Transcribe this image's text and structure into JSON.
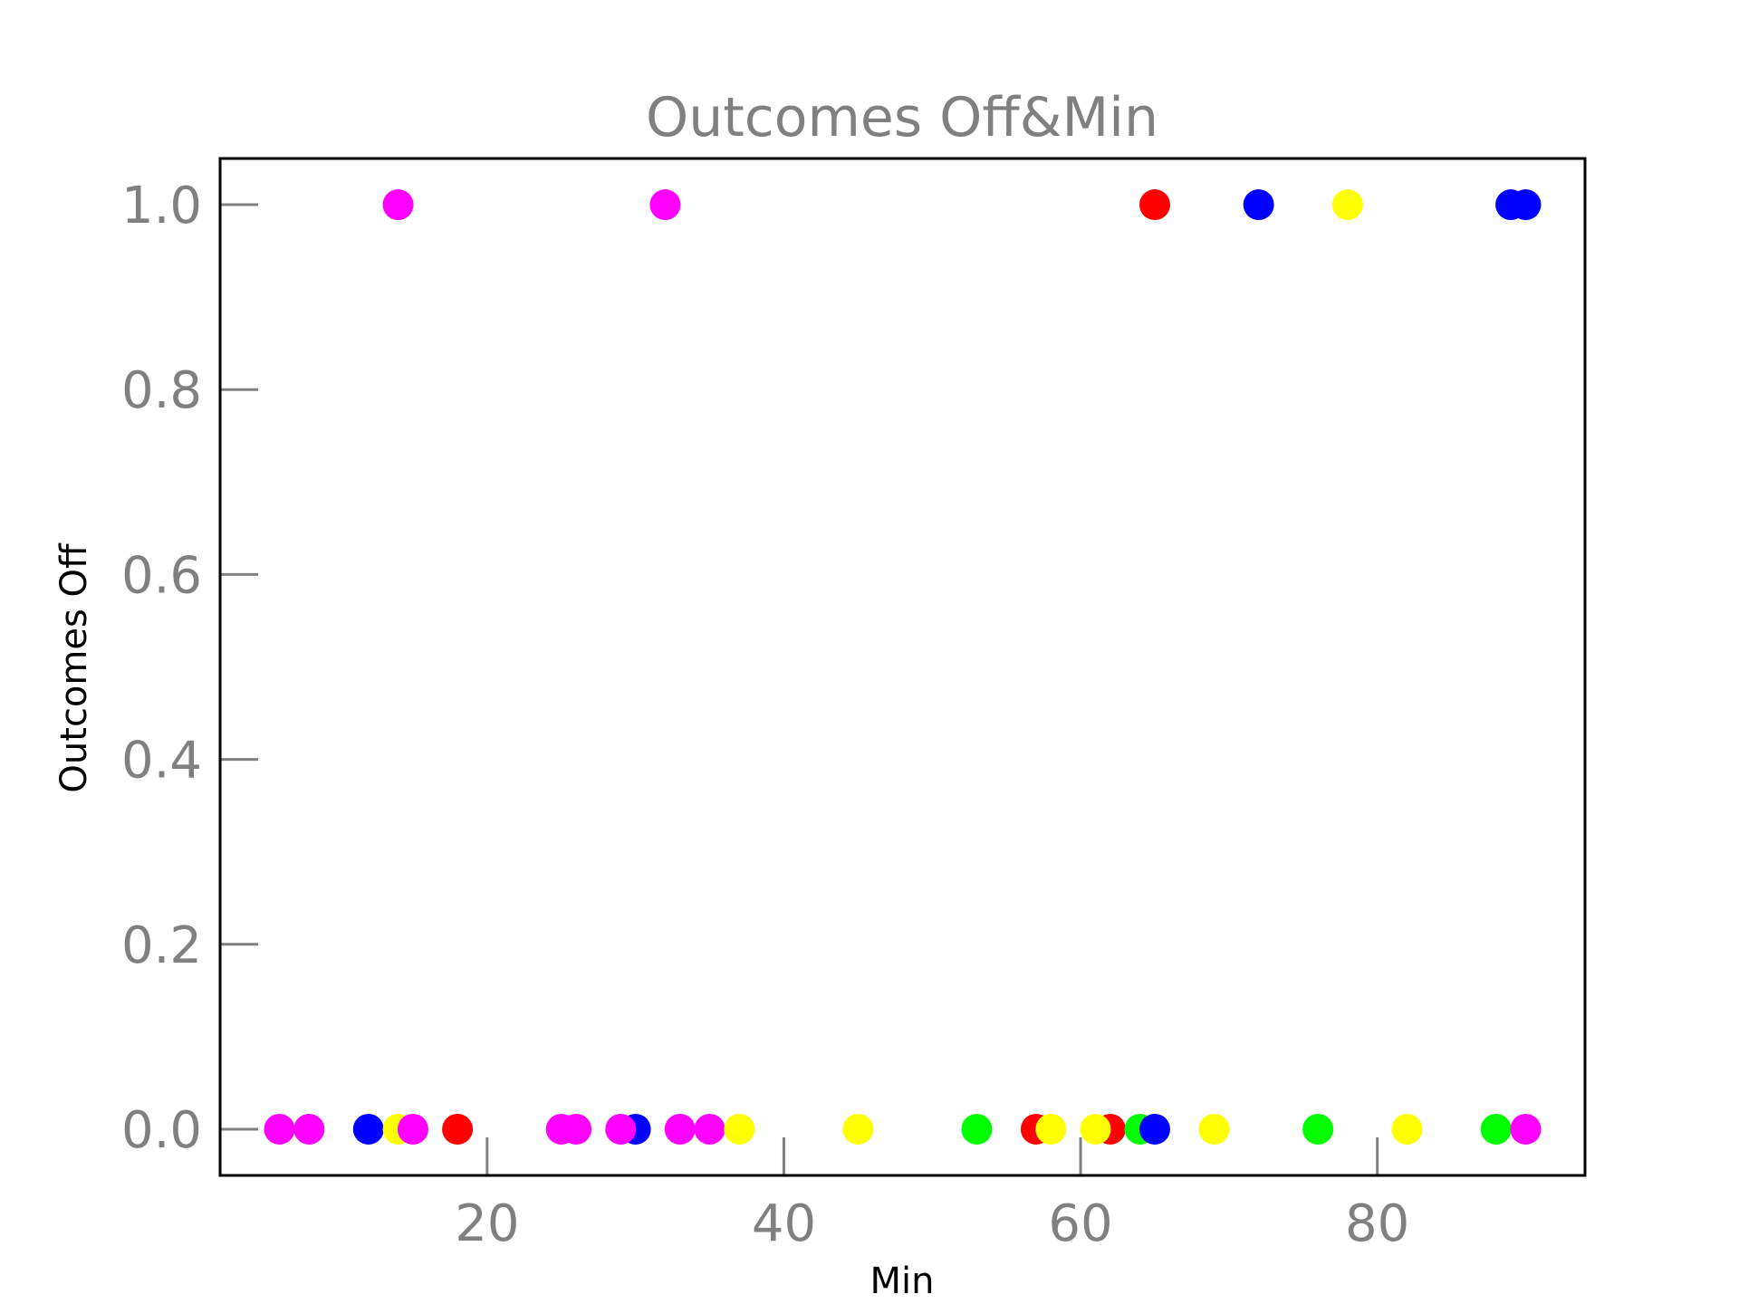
{
  "chart_data": {
    "type": "scatter",
    "title": "Outcomes Off&Min",
    "xlabel": "Min",
    "ylabel": "Outcomes Off",
    "xlim": [
      2,
      94
    ],
    "ylim": [
      -0.05,
      1.05
    ],
    "xticks": [
      20,
      40,
      60,
      80
    ],
    "yticks": [
      0.0,
      0.2,
      0.4,
      0.6,
      0.8,
      1.0
    ],
    "xtick_labels": [
      "20",
      "40",
      "60",
      "80"
    ],
    "ytick_labels": [
      "0.0",
      "0.2",
      "0.4",
      "0.6",
      "0.8",
      "1.0"
    ],
    "grid": false,
    "legend": "none",
    "colors": {
      "magenta": "#ff00ff",
      "blue": "#0000ff",
      "yellow": "#ffff00",
      "red": "#ff0000",
      "green": "#00ff00"
    },
    "points": [
      {
        "x": 6,
        "y": 0,
        "color": "#ff00ff"
      },
      {
        "x": 8,
        "y": 0,
        "color": "#ff00ff"
      },
      {
        "x": 12,
        "y": 0,
        "color": "#0000ff"
      },
      {
        "x": 14,
        "y": 0,
        "color": "#ffff00"
      },
      {
        "x": 15,
        "y": 0,
        "color": "#ff00ff"
      },
      {
        "x": 14,
        "y": 1,
        "color": "#ff00ff"
      },
      {
        "x": 18,
        "y": 0,
        "color": "#ff0000"
      },
      {
        "x": 25,
        "y": 0,
        "color": "#ff00ff"
      },
      {
        "x": 26,
        "y": 0,
        "color": "#ff00ff"
      },
      {
        "x": 30,
        "y": 0,
        "color": "#0000ff"
      },
      {
        "x": 29,
        "y": 0,
        "color": "#ff00ff"
      },
      {
        "x": 32,
        "y": 1,
        "color": "#ff00ff"
      },
      {
        "x": 33,
        "y": 0,
        "color": "#ff00ff"
      },
      {
        "x": 35,
        "y": 0,
        "color": "#ff00ff"
      },
      {
        "x": 37,
        "y": 0,
        "color": "#ffff00"
      },
      {
        "x": 45,
        "y": 0,
        "color": "#ffff00"
      },
      {
        "x": 53,
        "y": 0,
        "color": "#00ff00"
      },
      {
        "x": 57,
        "y": 0,
        "color": "#ff0000"
      },
      {
        "x": 58,
        "y": 0,
        "color": "#ffff00"
      },
      {
        "x": 62,
        "y": 0,
        "color": "#ff0000"
      },
      {
        "x": 61,
        "y": 0,
        "color": "#ffff00"
      },
      {
        "x": 64,
        "y": 0,
        "color": "#00ff00"
      },
      {
        "x": 65,
        "y": 0,
        "color": "#0000ff"
      },
      {
        "x": 65,
        "y": 1,
        "color": "#ff0000"
      },
      {
        "x": 69,
        "y": 0,
        "color": "#ffff00"
      },
      {
        "x": 72,
        "y": 1,
        "color": "#0000ff"
      },
      {
        "x": 76,
        "y": 0,
        "color": "#00ff00"
      },
      {
        "x": 78,
        "y": 1,
        "color": "#ffff00"
      },
      {
        "x": 82,
        "y": 0,
        "color": "#ffff00"
      },
      {
        "x": 88,
        "y": 0,
        "color": "#00ff00"
      },
      {
        "x": 89,
        "y": 1,
        "color": "#0000ff"
      },
      {
        "x": 90,
        "y": 1,
        "color": "#0000ff"
      },
      {
        "x": 90,
        "y": 0,
        "color": "#ff00ff"
      }
    ]
  }
}
